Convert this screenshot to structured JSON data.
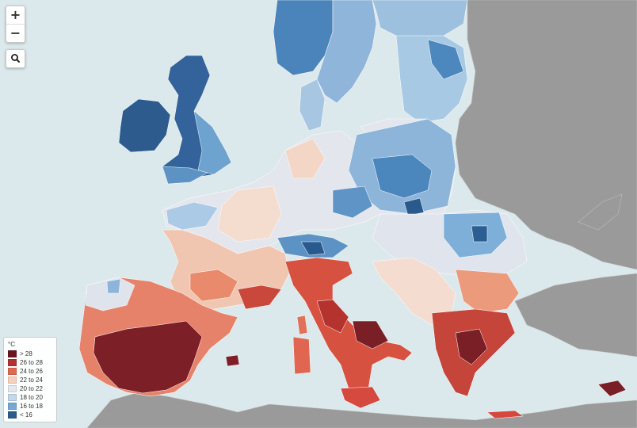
{
  "zoom": {
    "in_label": "+",
    "out_label": "−"
  },
  "search": {
    "icon": "search-icon"
  },
  "legend": {
    "title": "°C",
    "items": [
      {
        "label": "> 28",
        "color": "#6b1620"
      },
      {
        "label": "26 to 28",
        "color": "#b5312f"
      },
      {
        "label": "24 to 26",
        "color": "#e2694f"
      },
      {
        "label": "22 to 24",
        "color": "#f6d0bd"
      },
      {
        "label": "20 to 22",
        "color": "#e6e8ef"
      },
      {
        "label": "18 to 20",
        "color": "#c2d8eb"
      },
      {
        "label": "16 to 18",
        "color": "#74a9d4"
      },
      {
        "label": "< 16",
        "color": "#2b5c8e"
      }
    ]
  },
  "colors": {
    "sea": "#dce9ec",
    "non_eu_land": "#9a9a9a",
    "border": "#ffffff"
  }
}
